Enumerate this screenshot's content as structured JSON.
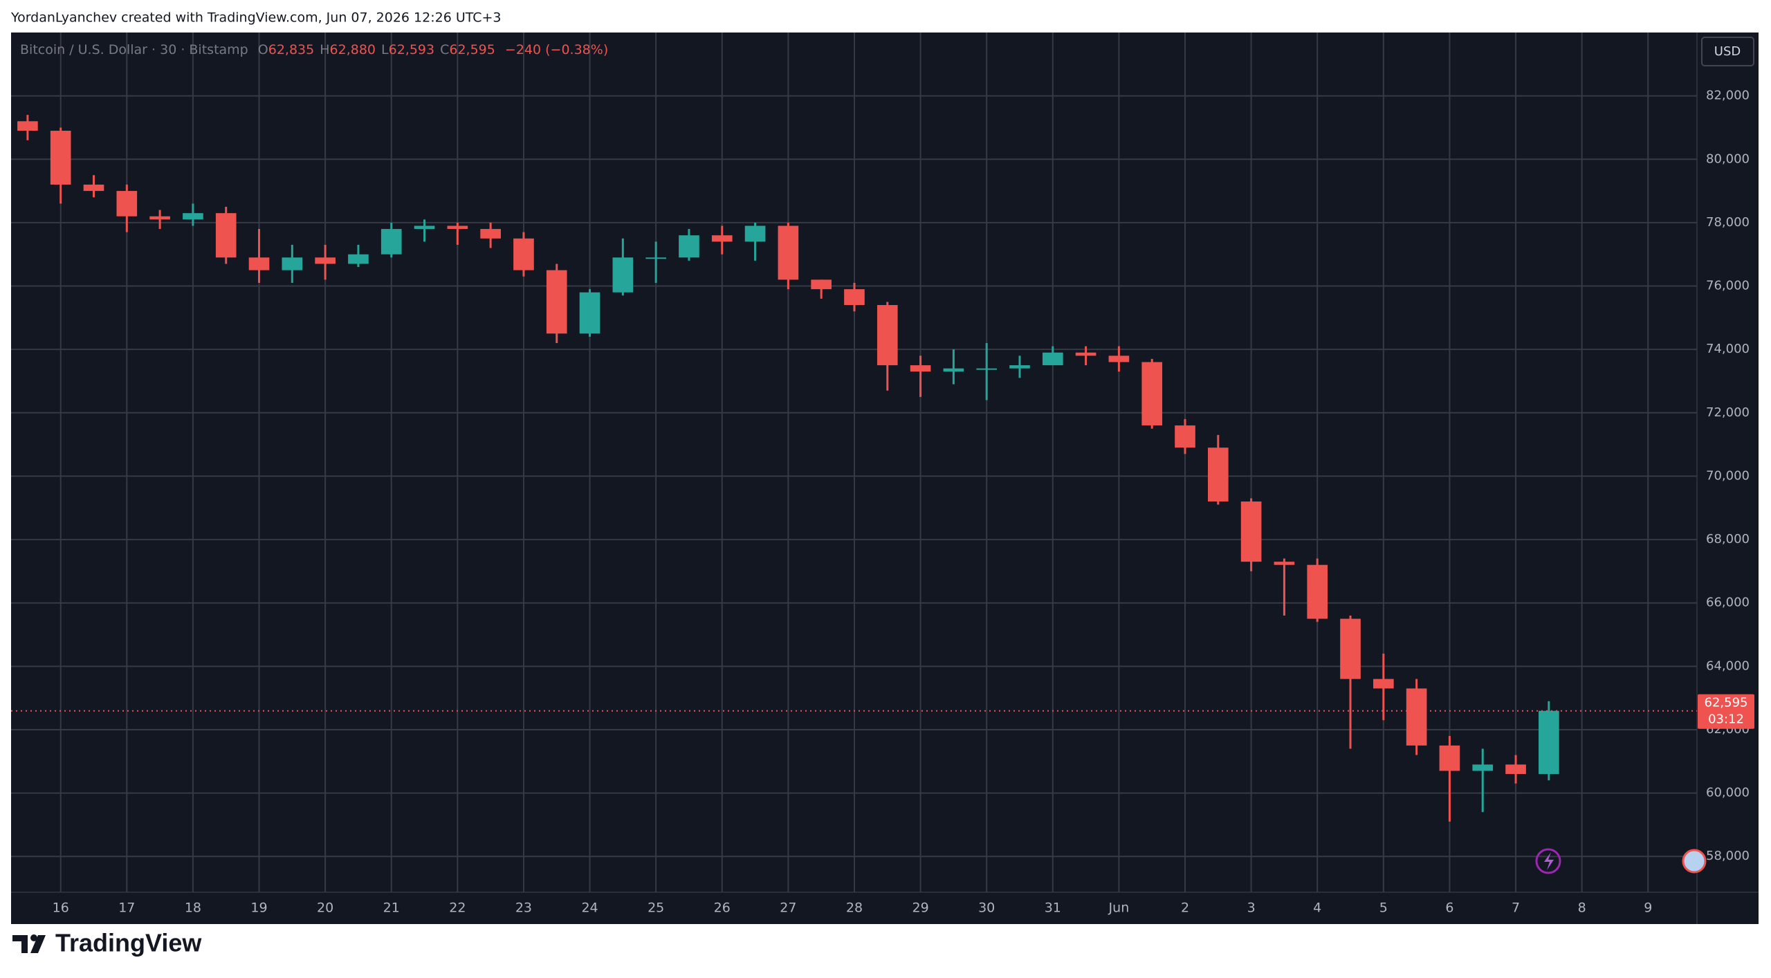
{
  "header": {
    "attribution": "YordanLyanchev created with TradingView.com, Jun 07, 2026 12:26 UTC+3"
  },
  "chart_data": {
    "type": "candlestick",
    "symbol": "Bitcoin / U.S. Dollar · 30 · Bitstamp",
    "ohlc_legend": [
      {
        "key": "O",
        "text": "62,835"
      },
      {
        "key": "H",
        "text": "62,880"
      },
      {
        "key": "L",
        "text": "62,593"
      },
      {
        "key": "C",
        "text": "62,595"
      }
    ],
    "change": "−240 (−0.38%)",
    "currency": "USD",
    "last_price": {
      "value": 62595,
      "label": "62,595"
    },
    "countdown": "03:12",
    "up_color": "#26a69a",
    "down_color": "#ef5350",
    "grid": true,
    "x": [
      -0.5,
      0,
      0.5,
      1,
      1.5,
      2,
      2.5,
      3,
      3.5,
      4,
      4.5,
      5,
      5.5,
      6,
      6.5,
      7,
      7.5,
      8,
      8.5,
      9,
      9.5,
      10,
      10.5,
      11,
      11.5,
      12,
      12.5,
      13,
      13.5,
      14,
      14.5,
      15,
      15.5,
      16,
      16.5,
      17,
      17.5,
      18,
      18.5,
      19,
      19.5,
      20,
      20.5,
      21,
      21.5,
      22,
      22.5
    ],
    "open": [
      81200,
      80900,
      79200,
      79000,
      78200,
      78100,
      78300,
      76900,
      76500,
      76900,
      76700,
      77000,
      77800,
      77900,
      77800,
      77500,
      76500,
      74500,
      75800,
      76900,
      76900,
      77600,
      77400,
      77900,
      76200,
      75900,
      75400,
      73500,
      73300,
      73400,
      73400,
      73500,
      73900,
      73800,
      73600,
      71600,
      70900,
      69200,
      67300,
      67200,
      65500,
      63600,
      63300,
      61500,
      60700,
      60900,
      60600
    ],
    "high": [
      81400,
      81000,
      79500,
      79200,
      78400,
      78600,
      78500,
      77800,
      77300,
      77300,
      77300,
      78000,
      78100,
      78000,
      78000,
      77700,
      76700,
      75900,
      77500,
      77400,
      77800,
      77900,
      78000,
      78000,
      76200,
      76100,
      75500,
      73800,
      74000,
      74200,
      73800,
      74100,
      74100,
      74100,
      73700,
      71800,
      71300,
      69300,
      67400,
      67400,
      65600,
      64400,
      63600,
      61800,
      61400,
      61200,
      62900
    ],
    "low": [
      80600,
      78600,
      78800,
      77700,
      77800,
      77900,
      76700,
      76100,
      76100,
      76200,
      76600,
      76900,
      77400,
      77300,
      77200,
      76300,
      74200,
      74400,
      75700,
      76100,
      76800,
      77000,
      76800,
      75900,
      75600,
      75200,
      72700,
      72500,
      72900,
      72400,
      73100,
      73500,
      73500,
      73300,
      71500,
      70700,
      69100,
      67000,
      65600,
      65400,
      61400,
      62300,
      61200,
      59100,
      59400,
      60300,
      60400
    ],
    "close": [
      80900,
      79200,
      79000,
      78200,
      78100,
      78300,
      76900,
      76500,
      76900,
      76700,
      77000,
      77800,
      77900,
      77800,
      77500,
      76500,
      74500,
      75800,
      76900,
      76900,
      77600,
      77400,
      77900,
      76200,
      75900,
      75400,
      73500,
      73300,
      73400,
      73400,
      73500,
      73900,
      73800,
      73600,
      71600,
      70900,
      69200,
      67300,
      67200,
      65500,
      63600,
      63300,
      61500,
      60700,
      60900,
      60600,
      62595
    ],
    "xlim": [
      -0.75,
      24.74
    ],
    "xticks": [
      {
        "value": 0,
        "label": "16"
      },
      {
        "value": 1,
        "label": "17"
      },
      {
        "value": 2,
        "label": "18"
      },
      {
        "value": 3,
        "label": "19"
      },
      {
        "value": 4,
        "label": "20"
      },
      {
        "value": 5,
        "label": "21"
      },
      {
        "value": 6,
        "label": "22"
      },
      {
        "value": 7,
        "label": "23"
      },
      {
        "value": 8,
        "label": "24"
      },
      {
        "value": 9,
        "label": "25"
      },
      {
        "value": 10,
        "label": "26"
      },
      {
        "value": 11,
        "label": "27"
      },
      {
        "value": 12,
        "label": "28"
      },
      {
        "value": 13,
        "label": "29"
      },
      {
        "value": 14,
        "label": "30"
      },
      {
        "value": 15,
        "label": "31"
      },
      {
        "value": 16,
        "label": "Jun"
      },
      {
        "value": 17,
        "label": "2"
      },
      {
        "value": 18,
        "label": "3"
      },
      {
        "value": 19,
        "label": "4"
      },
      {
        "value": 20,
        "label": "5"
      },
      {
        "value": 21,
        "label": "6"
      },
      {
        "value": 22,
        "label": "7"
      },
      {
        "value": 23,
        "label": "8"
      },
      {
        "value": 24,
        "label": "9"
      }
    ],
    "ylim": [
      56870,
      84000
    ],
    "yticks": [
      {
        "value": 58000,
        "label": "58,000"
      },
      {
        "value": 60000,
        "label": "60,000"
      },
      {
        "value": 62000,
        "label": "62,000"
      },
      {
        "value": 64000,
        "label": "64,000"
      },
      {
        "value": 66000,
        "label": "66,000"
      },
      {
        "value": 68000,
        "label": "68,000"
      },
      {
        "value": 70000,
        "label": "70,000"
      },
      {
        "value": 72000,
        "label": "72,000"
      },
      {
        "value": 74000,
        "label": "74,000"
      },
      {
        "value": 76000,
        "label": "76,000"
      },
      {
        "value": 78000,
        "label": "78,000"
      },
      {
        "value": 80000,
        "label": "80,000"
      },
      {
        "value": 82000,
        "label": "82,000"
      }
    ]
  },
  "footer": {
    "brand": "TradingView"
  }
}
